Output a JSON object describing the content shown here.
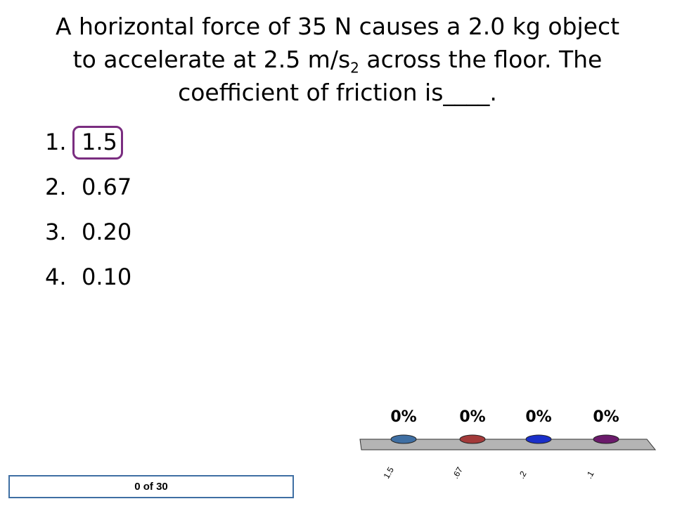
{
  "question": {
    "line1": "A horizontal force of 35 N causes a 2.0 kg object",
    "line2_before": "to accelerate at 2.5 m/s",
    "line2_sup": "2",
    "line2_after": " across the floor.  The",
    "line3": "coefficient of friction is____."
  },
  "options": [
    {
      "num": "1.",
      "value": "1.5",
      "selected": true
    },
    {
      "num": "2.",
      "value": "0.67",
      "selected": false
    },
    {
      "num": "3.",
      "value": "0.20",
      "selected": false
    },
    {
      "num": "4.",
      "value": "0.10",
      "selected": false
    }
  ],
  "response_counter": "0 of 30",
  "colors": {
    "selection_ring": "#7a2d80",
    "counter_border": "#3f6fa3",
    "platform": "#b4b4b4"
  },
  "chart_data": {
    "type": "bar",
    "categories": [
      "1.5",
      ".67",
      ".2",
      ".1"
    ],
    "values": [
      0,
      0,
      0,
      0
    ],
    "value_labels": [
      "0%",
      "0%",
      "0%",
      "0%"
    ],
    "series_colors": [
      "#3f6fa3",
      "#a33a3a",
      "#1a2fc9",
      "#6b1a6b"
    ]
  }
}
